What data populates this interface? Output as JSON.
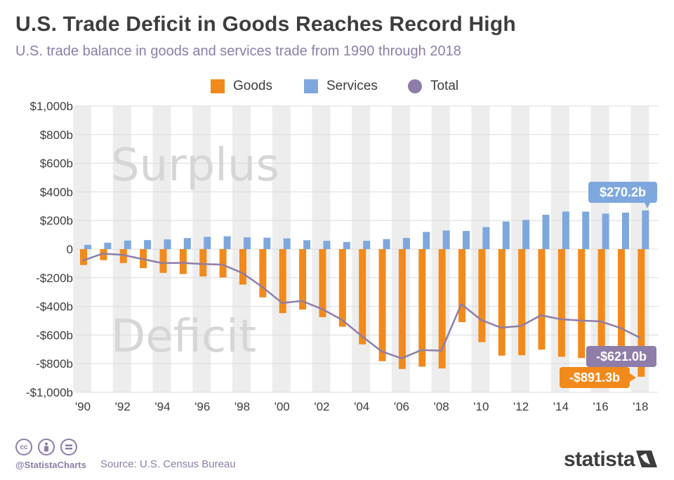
{
  "title": "U.S. Trade Deficit in Goods Reaches Record High",
  "subtitle": "U.S. trade balance in goods and services trade from 1990 through 2018",
  "legend": [
    {
      "label": "Goods",
      "color": "#f28a1b"
    },
    {
      "label": "Services",
      "color": "#7ea8dd"
    },
    {
      "label": "Total",
      "color": "#8d7da8"
    }
  ],
  "chart_data": {
    "type": "bar",
    "x": [
      1990,
      1991,
      1992,
      1993,
      1994,
      1995,
      1996,
      1997,
      1998,
      1999,
      2000,
      2001,
      2002,
      2003,
      2004,
      2005,
      2006,
      2007,
      2008,
      2009,
      2010,
      2011,
      2012,
      2013,
      2014,
      2015,
      2016,
      2017,
      2018
    ],
    "x_tick_labels": [
      "'90",
      "'92",
      "'94",
      "'96",
      "'98",
      "'00",
      "'02",
      "'04",
      "'06",
      "'08",
      "'10",
      "'12",
      "'14",
      "'16",
      "'18"
    ],
    "y_tick_labels": [
      "$1,000b",
      "$800b",
      "$600b",
      "$400b",
      "$200b",
      "0",
      "-$200b",
      "-$400b",
      "-$600b",
      "-$800b",
      "-$1,000b"
    ],
    "ylim": [
      -1000,
      1000
    ],
    "grid": true,
    "legend_position": "top-center",
    "series": [
      {
        "name": "Goods",
        "type": "bar",
        "color": "#f28a1b",
        "values": [
          -111,
          -77,
          -97,
          -133,
          -166,
          -174,
          -191,
          -198,
          -248,
          -337,
          -447,
          -422,
          -475,
          -542,
          -665,
          -783,
          -837,
          -821,
          -833,
          -510,
          -650,
          -744,
          -741,
          -702,
          -752,
          -761,
          -752,
          -806,
          -891.3
        ]
      },
      {
        "name": "Services",
        "type": "bar",
        "color": "#7ea8dd",
        "values": [
          30,
          45,
          60,
          63,
          68,
          77,
          86,
          90,
          82,
          80,
          75,
          62,
          58,
          50,
          58,
          70,
          78,
          120,
          130,
          127,
          154,
          193,
          204,
          240,
          262,
          262,
          248,
          255,
          270.2
        ]
      },
      {
        "name": "Total",
        "type": "line",
        "color": "#8d7da8",
        "values": [
          -80,
          -31,
          -40,
          -70,
          -98,
          -96,
          -104,
          -108,
          -166,
          -263,
          -376,
          -362,
          -418,
          -493,
          -607,
          -714,
          -763,
          -705,
          -709,
          -384,
          -495,
          -549,
          -537,
          -462,
          -490,
          -499,
          -505,
          -551,
          -621.0
        ]
      }
    ],
    "annotations": {
      "surplus": "Surplus",
      "deficit": "Deficit",
      "services_2018": "$270.2b",
      "total_2018": "-$621.0b",
      "goods_2018": "-$891.3b"
    }
  },
  "footer": {
    "handle": "@StatistaCharts",
    "source": "Source: U.S. Census Bureau",
    "brand": "statista",
    "license_icons": [
      "cc",
      "by",
      "nd"
    ]
  }
}
